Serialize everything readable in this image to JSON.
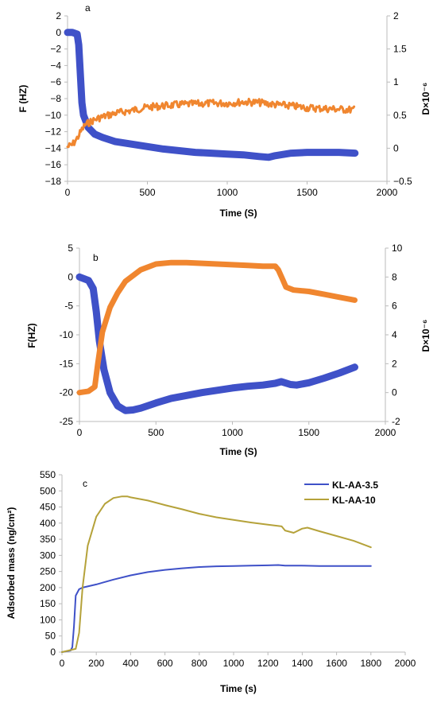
{
  "chart_data": [
    {
      "type": "line",
      "panel_label": "a",
      "xlabel": "Time (S)",
      "ylabel": "F (HZ)",
      "y2label": "D×10⁻⁶",
      "xlim": [
        0,
        2000
      ],
      "ylim": [
        -18,
        2
      ],
      "y2lim": [
        -0.5,
        2
      ],
      "x_ticks": [
        "0",
        "500",
        "1000",
        "1500",
        "2000"
      ],
      "y_ticks": [
        "2",
        "0",
        "−2",
        "−4",
        "−6",
        "−8",
        "−10",
        "−12",
        "−14",
        "−16",
        "−18"
      ],
      "y2_ticks": [
        "2",
        "1.5",
        "1",
        "0.5",
        "0",
        "−0.5"
      ],
      "grid": false,
      "series": [
        {
          "axis": "left",
          "color": "#3f51c8",
          "marker": "dense-thick",
          "x": [
            0,
            30,
            60,
            70,
            80,
            90,
            100,
            130,
            170,
            220,
            300,
            400,
            500,
            600,
            700,
            800,
            900,
            1000,
            1100,
            1200,
            1260,
            1300,
            1400,
            1500,
            1600,
            1700,
            1800
          ],
          "values": [
            0,
            0,
            -0.2,
            -1.5,
            -5,
            -8.5,
            -10,
            -11.5,
            -12.3,
            -12.7,
            -13.2,
            -13.5,
            -13.8,
            -14.1,
            -14.3,
            -14.5,
            -14.6,
            -14.7,
            -14.8,
            -15,
            -15.1,
            -14.9,
            -14.6,
            -14.5,
            -14.5,
            -14.5,
            -14.6
          ]
        },
        {
          "axis": "right",
          "color": "#f0862f",
          "marker": "noisy",
          "x": [
            0,
            30,
            60,
            90,
            110,
            150,
            200,
            300,
            400,
            500,
            600,
            700,
            800,
            900,
            1000,
            1100,
            1200,
            1300,
            1400,
            1500,
            1600,
            1700,
            1800
          ],
          "values": [
            0.02,
            0.05,
            0.15,
            0.28,
            0.35,
            0.41,
            0.46,
            0.53,
            0.57,
            0.62,
            0.64,
            0.66,
            0.67,
            0.68,
            0.68,
            0.7,
            0.69,
            0.66,
            0.64,
            0.61,
            0.6,
            0.59,
            0.58
          ]
        }
      ]
    },
    {
      "type": "line",
      "panel_label": "b",
      "xlabel": "Time (S)",
      "ylabel": "F(HZ)",
      "y2label": "D×10⁻⁶",
      "xlim": [
        0,
        2000
      ],
      "ylim": [
        -25,
        5
      ],
      "y2lim": [
        -2,
        10
      ],
      "x_ticks": [
        "0",
        "500",
        "1000",
        "1500",
        "2000"
      ],
      "y_ticks": [
        "5",
        "0",
        "-5",
        "-10",
        "-15",
        "-20",
        "-25"
      ],
      "y2_ticks": [
        "10",
        "8",
        "6",
        "4",
        "2",
        "0",
        "-2"
      ],
      "grid": false,
      "series": [
        {
          "axis": "left",
          "color": "#3f51c8",
          "marker": "dense-thick",
          "x": [
            0,
            60,
            90,
            110,
            130,
            160,
            200,
            250,
            300,
            350,
            400,
            500,
            600,
            700,
            800,
            900,
            1000,
            1100,
            1200,
            1280,
            1320,
            1380,
            1420,
            1500,
            1600,
            1700,
            1800
          ],
          "values": [
            0,
            -0.6,
            -2,
            -6,
            -11,
            -16,
            -20,
            -22.3,
            -23.1,
            -23,
            -22.7,
            -21.8,
            -21,
            -20.5,
            -20,
            -19.6,
            -19.2,
            -18.9,
            -18.7,
            -18.4,
            -18.1,
            -18.6,
            -18.7,
            -18.3,
            -17.5,
            -16.6,
            -15.6
          ]
        },
        {
          "axis": "right",
          "color": "#f0862f",
          "marker": "dense-thick",
          "x": [
            0,
            60,
            100,
            120,
            150,
            200,
            250,
            300,
            400,
            500,
            600,
            700,
            800,
            900,
            1000,
            1100,
            1200,
            1280,
            1300,
            1330,
            1350,
            1400,
            1500,
            1600,
            1700,
            1800
          ],
          "values": [
            0,
            0.1,
            0.4,
            2,
            4.2,
            5.9,
            6.9,
            7.7,
            8.5,
            8.9,
            9,
            9,
            8.95,
            8.9,
            8.85,
            8.8,
            8.75,
            8.75,
            8.5,
            7.8,
            7.3,
            7.1,
            7,
            6.8,
            6.6,
            6.4
          ]
        }
      ]
    },
    {
      "type": "line",
      "panel_label": "c",
      "xlabel": "Time (s)",
      "ylabel": "Adsorbed mass (ng/cm²)",
      "xlim": [
        0,
        2000
      ],
      "ylim": [
        0,
        550
      ],
      "x_ticks": [
        "0",
        "200",
        "400",
        "600",
        "800",
        "1000",
        "1200",
        "1400",
        "1600",
        "1800",
        "2000"
      ],
      "y_ticks": [
        "550",
        "500",
        "450",
        "400",
        "350",
        "300",
        "250",
        "200",
        "150",
        "100",
        "50",
        "0"
      ],
      "grid": false,
      "legend_position": "top-right",
      "series": [
        {
          "name": "KL-AA-3.5",
          "color": "#3f51c8",
          "x": [
            0,
            50,
            60,
            70,
            80,
            100,
            120,
            200,
            300,
            400,
            500,
            600,
            700,
            800,
            900,
            1000,
            1100,
            1200,
            1260,
            1300,
            1400,
            1500,
            1600,
            1700,
            1800
          ],
          "values": [
            0,
            5,
            15,
            80,
            175,
            195,
            200,
            210,
            225,
            238,
            248,
            255,
            260,
            264,
            266,
            267,
            268,
            269,
            270,
            268,
            268,
            267,
            267,
            267,
            267
          ]
        },
        {
          "name": "KL-AA-10",
          "color": "#b5a23a",
          "x": [
            0,
            80,
            100,
            120,
            150,
            200,
            250,
            300,
            350,
            380,
            400,
            500,
            600,
            700,
            800,
            900,
            1000,
            1100,
            1200,
            1280,
            1300,
            1350,
            1400,
            1430,
            1500,
            1600,
            1700,
            1800
          ],
          "values": [
            0,
            10,
            60,
            200,
            330,
            420,
            460,
            478,
            483,
            483,
            480,
            470,
            456,
            443,
            429,
            418,
            410,
            402,
            395,
            390,
            377,
            370,
            383,
            386,
            375,
            360,
            345,
            325
          ]
        }
      ]
    }
  ]
}
